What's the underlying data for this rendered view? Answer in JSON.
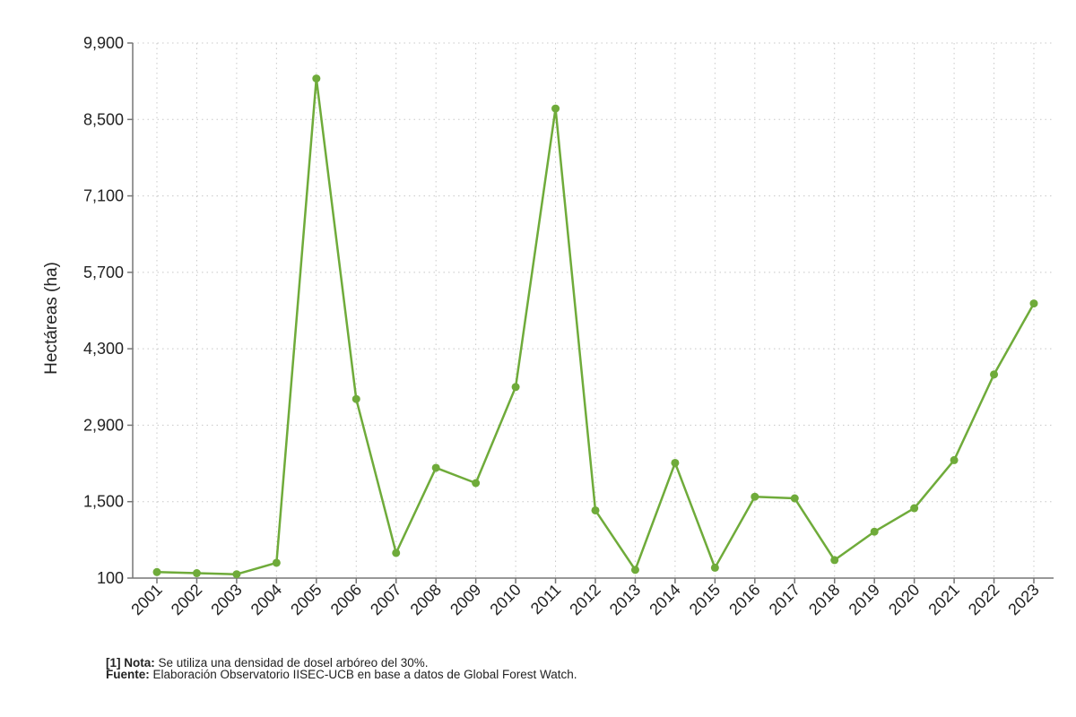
{
  "chart_data": {
    "type": "line",
    "title": "",
    "xlabel": "",
    "ylabel": "Hectáreas (ha)",
    "ylim": [
      100,
      9900
    ],
    "yticks": [
      100,
      1500,
      2900,
      4300,
      5700,
      7100,
      8500,
      9900
    ],
    "ytick_labels": [
      "100",
      "1,500",
      "2,900",
      "4,300",
      "5,700",
      "7,100",
      "8,500",
      "9,900"
    ],
    "grid": true,
    "color": "#6fab3a",
    "x": [
      "2001",
      "2002",
      "2003",
      "2004",
      "2005",
      "2006",
      "2007",
      "2008",
      "2009",
      "2010",
      "2011",
      "2012",
      "2013",
      "2014",
      "2015",
      "2016",
      "2017",
      "2018",
      "2019",
      "2020",
      "2021",
      "2022",
      "2023"
    ],
    "series": [
      {
        "values": [
          210,
          190,
          170,
          380,
          9250,
          3380,
          560,
          2120,
          1840,
          3600,
          8700,
          1340,
          250,
          2210,
          290,
          1590,
          1560,
          430,
          950,
          1380,
          2260,
          3830,
          5130
        ]
      }
    ]
  },
  "notes": {
    "nota_label": "[1] Nota:",
    "nota_text": " Se utiliza una densidad de dosel arbóreo del 30%.",
    "fuente_label": "Fuente:",
    "fuente_text": " Elaboración Observatorio IISEC-UCB en base a datos de Global Forest Watch."
  }
}
